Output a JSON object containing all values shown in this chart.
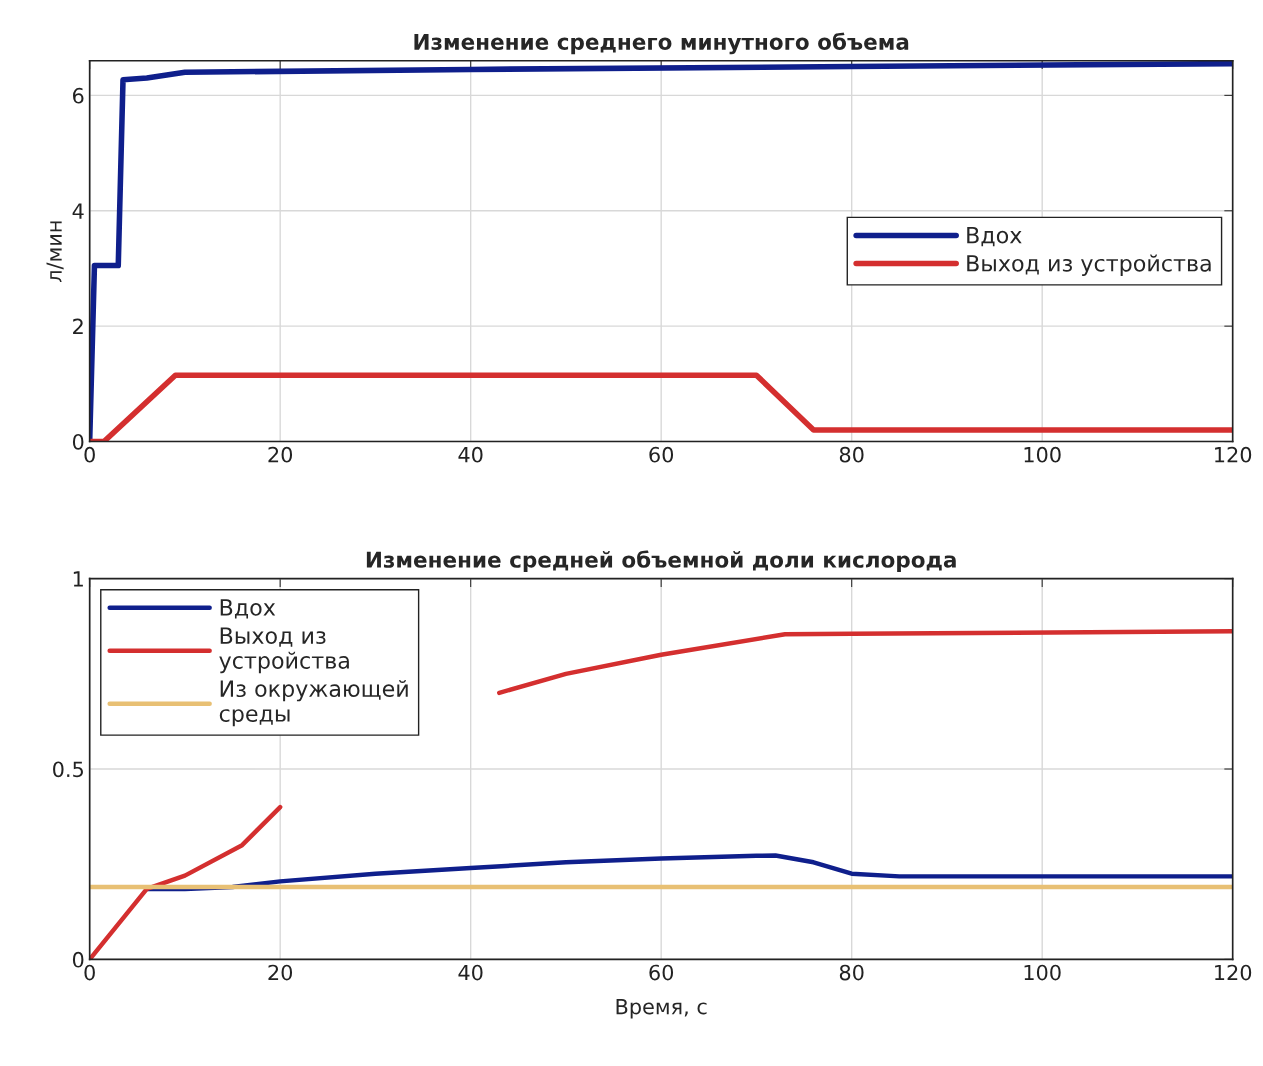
{
  "chart_data": [
    {
      "type": "line",
      "title": "Изменение среднего минутного объема",
      "ylabel": "л/мин",
      "xlim": [
        0,
        120
      ],
      "ylim": [
        0,
        6.6
      ],
      "xticks": [
        0,
        20,
        40,
        60,
        80,
        100,
        120
      ],
      "yticks": [
        0,
        2,
        4,
        6
      ],
      "grid": true,
      "legend": "right",
      "series": [
        {
          "name": "Вдох",
          "color": "#0f1f8c",
          "x": [
            0,
            0.5,
            3,
            3.5,
            6,
            10,
            40,
            80,
            120
          ],
          "values": [
            0,
            3.05,
            3.05,
            6.27,
            6.3,
            6.4,
            6.45,
            6.5,
            6.55
          ]
        },
        {
          "name": "Выход из устройства",
          "color": "#d42f2f",
          "x": [
            0,
            1.5,
            9,
            70,
            76,
            120
          ],
          "values": [
            0,
            0,
            1.15,
            1.15,
            0.2,
            0.2
          ]
        }
      ]
    },
    {
      "type": "line",
      "title": "Изменение средней объемной доли кислорода",
      "xlabel": "Время, с",
      "xlim": [
        0,
        120
      ],
      "ylim": [
        0,
        1
      ],
      "xticks": [
        0,
        20,
        40,
        60,
        80,
        100,
        120
      ],
      "yticks": [
        0,
        0.5,
        1
      ],
      "grid": true,
      "legend": "top left",
      "series": [
        {
          "name": "Вдох",
          "color": "#0f1f8c",
          "x": [
            6,
            10,
            15,
            20,
            30,
            40,
            50,
            60,
            70,
            72,
            76,
            80,
            85,
            120
          ],
          "values": [
            0.185,
            0.185,
            0.19,
            0.205,
            0.225,
            0.24,
            0.255,
            0.265,
            0.272,
            0.273,
            0.255,
            0.225,
            0.218,
            0.218
          ]
        },
        {
          "name": "Выход из\nустройства",
          "color": "#d42f2f",
          "x": [
            0,
            6,
            10,
            16,
            20,
            30,
            43,
            50,
            60,
            73,
            80,
            120
          ],
          "values": [
            0,
            0.185,
            0.22,
            0.3,
            0.4,
            null,
            0.7,
            0.75,
            0.8,
            0.854,
            0.855,
            0.862
          ]
        },
        {
          "name": "Из окружающей\nсреды",
          "color": "#e8c074",
          "x": [
            0,
            120
          ],
          "values": [
            0.19,
            0.19
          ]
        }
      ]
    }
  ]
}
